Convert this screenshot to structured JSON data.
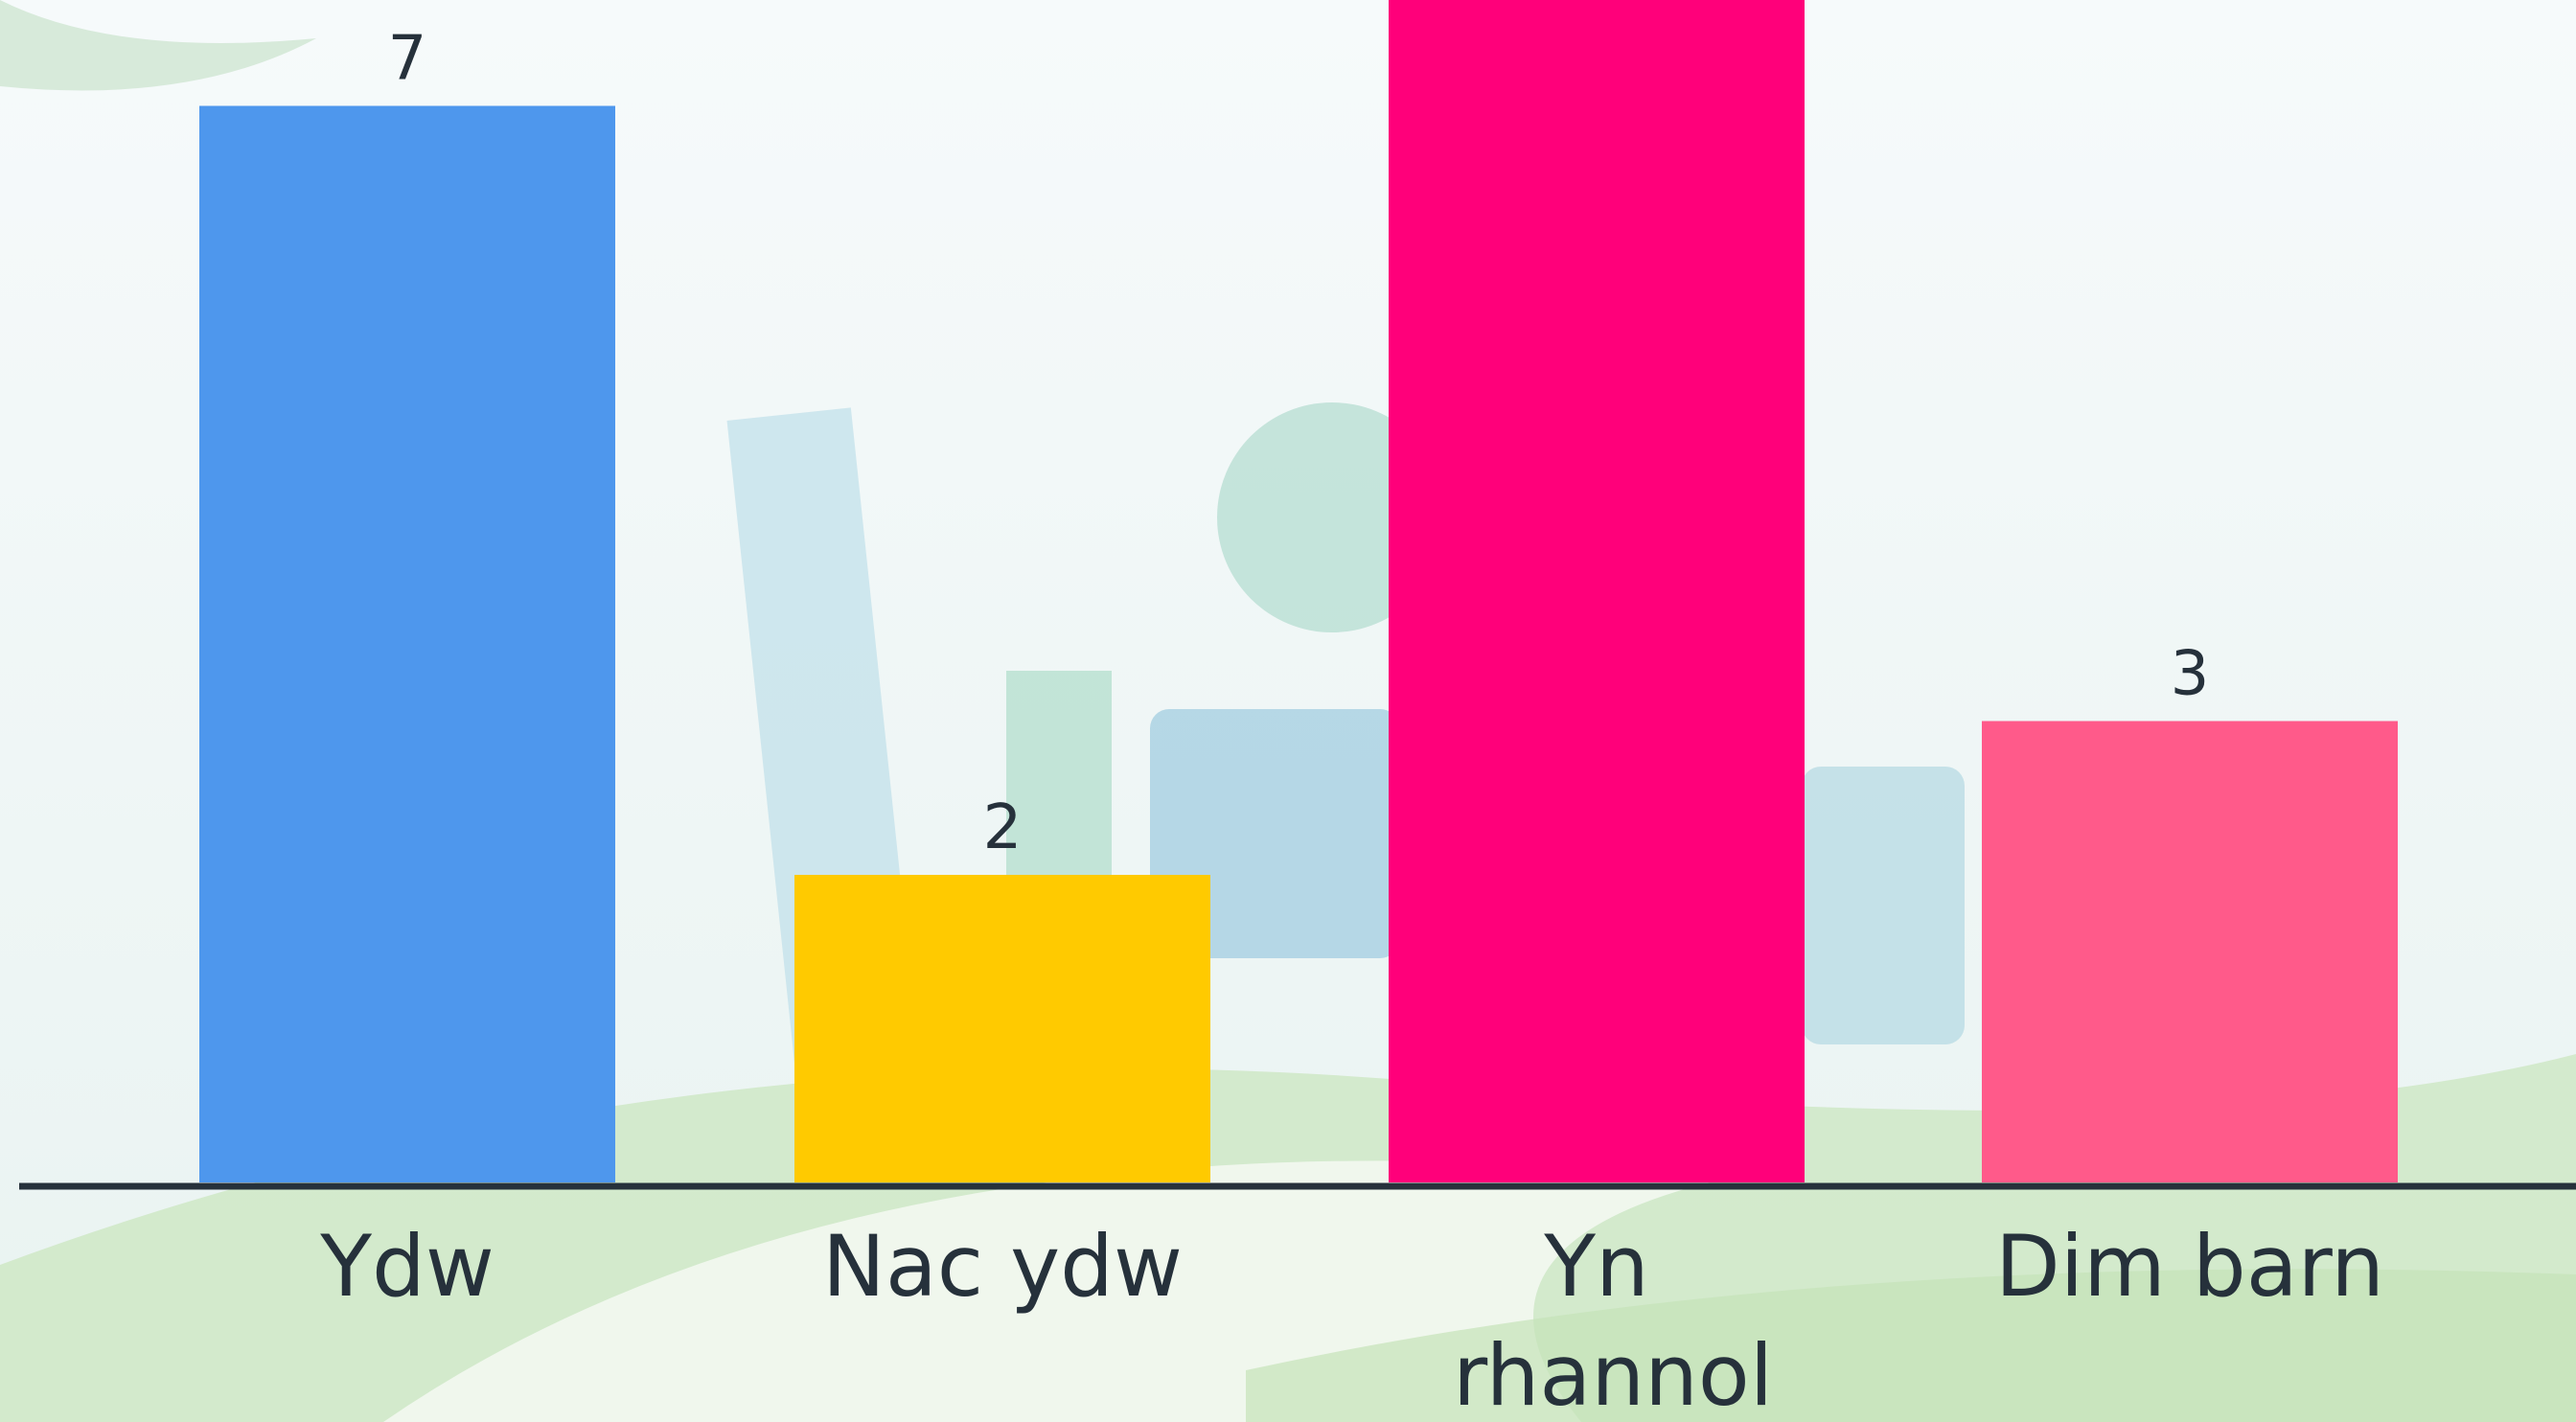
{
  "chart_data": {
    "type": "bar",
    "categories": [
      "Ydw",
      "Nac ydw",
      "Yn rhannol",
      "Dim barn"
    ],
    "values": [
      7,
      2,
      8,
      3
    ],
    "colors": [
      "#4e97ed",
      "#ffca00",
      "#ff007a",
      "#ff5a8a"
    ]
  }
}
